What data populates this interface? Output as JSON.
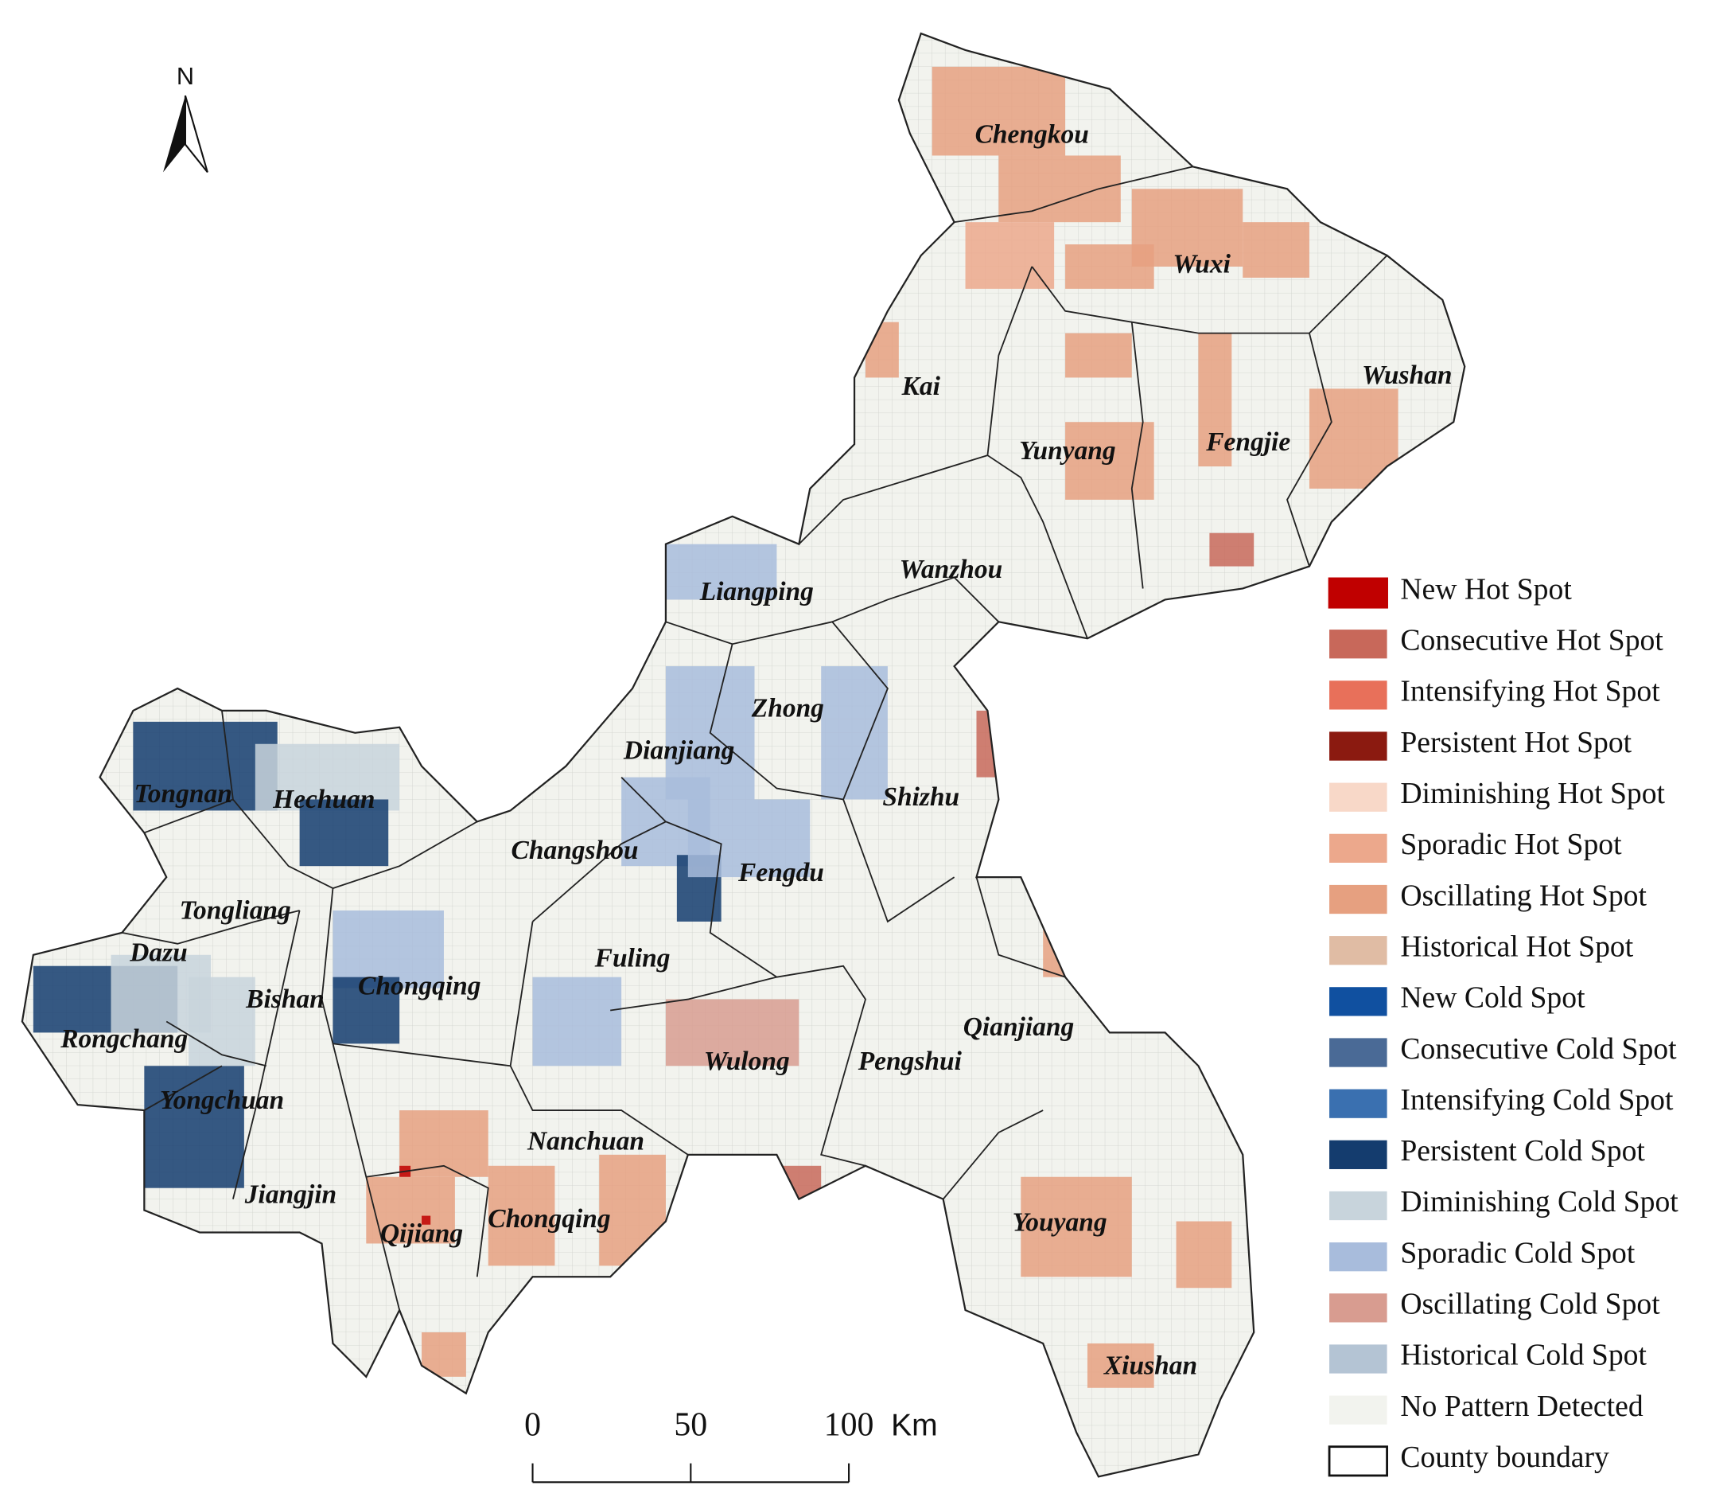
{
  "north_label": "N",
  "counties": [
    {
      "name": "Chengkou"
    },
    {
      "name": "Wuxi"
    },
    {
      "name": "Kai"
    },
    {
      "name": "Wushan"
    },
    {
      "name": "Yunyang"
    },
    {
      "name": "Fengjie"
    },
    {
      "name": "Wanzhou"
    },
    {
      "name": "Liangping"
    },
    {
      "name": "Zhong"
    },
    {
      "name": "Dianjiang"
    },
    {
      "name": "Shizhu"
    },
    {
      "name": "Tongnan"
    },
    {
      "name": "Hechuan"
    },
    {
      "name": "Changshou"
    },
    {
      "name": "Fengdu"
    },
    {
      "name": "Tongliang"
    },
    {
      "name": "Dazu"
    },
    {
      "name": "Fuling"
    },
    {
      "name": "Chongqing"
    },
    {
      "name": "Bishan"
    },
    {
      "name": "Qianjiang"
    },
    {
      "name": "Rongchang"
    },
    {
      "name": "Wulong"
    },
    {
      "name": "Pengshui"
    },
    {
      "name": "Yongchuan"
    },
    {
      "name": "Nanchuan"
    },
    {
      "name": "Jiangjin"
    },
    {
      "name": "Youyang"
    },
    {
      "name": "Qijiang"
    },
    {
      "name": "Chongqing"
    },
    {
      "name": "Xiushan"
    }
  ],
  "legend": [
    {
      "label": "New Hot Spot",
      "color": "#c00000"
    },
    {
      "label": "Consecutive Hot Spot",
      "color": "#c8685a"
    },
    {
      "label": "Intensifying Hot Spot",
      "color": "#e8705a"
    },
    {
      "label": "Persistent Hot Spot",
      "color": "#8b1a10"
    },
    {
      "label": "Diminishing Hot Spot",
      "color": "#f8d8c8"
    },
    {
      "label": "Sporadic Hot Spot",
      "color": "#eca88c"
    },
    {
      "label": "Oscillating Hot Spot",
      "color": "#e6a080"
    },
    {
      "label": "Historical Hot Spot",
      "color": "#e0bca4"
    },
    {
      "label": "New Cold Spot",
      "color": "#1050a0"
    },
    {
      "label": "Consecutive Cold Spot",
      "color": "#4a6a96"
    },
    {
      "label": "Intensifying Cold Spot",
      "color": "#3a70b0"
    },
    {
      "label": "Persistent Cold Spot",
      "color": "#143c6e"
    },
    {
      "label": "Diminishing Cold Spot",
      "color": "#c8d4dc"
    },
    {
      "label": "Sporadic Cold Spot",
      "color": "#a8bcdc"
    },
    {
      "label": "Oscillating Cold Spot",
      "color": "#d89c90"
    },
    {
      "label": "Historical Cold Spot",
      "color": "#b4c4d4"
    },
    {
      "label": "No Pattern Detected",
      "color": "#f2f3ee"
    },
    {
      "label": "County boundary",
      "color": "#ffffff"
    }
  ],
  "scale_bar": {
    "ticks": [
      0,
      50,
      100
    ],
    "unit": "Km"
  }
}
